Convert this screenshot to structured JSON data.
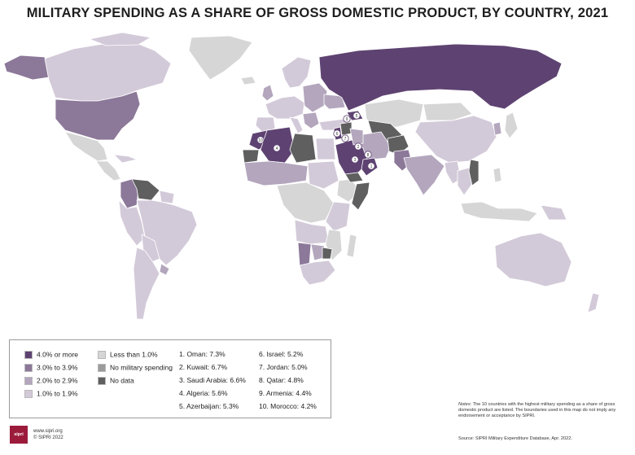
{
  "title": "MILITARY SPENDING AS A SHARE OF GROSS DOMESTIC PRODUCT, BY COUNTRY, 2021",
  "colors": {
    "c4": "#5e4372",
    "c3": "#8c7899",
    "c2": "#b3a6bd",
    "c1": "#d3cad9",
    "c0": "#d6d6d6",
    "none": "#9b9b9b",
    "nodata": "#5f5f5f",
    "ocean": "#ffffff",
    "border": "#ffffff"
  },
  "legend": {
    "categories": [
      {
        "label": "4.0% or more",
        "color": "#5e4372"
      },
      {
        "label": "3.0% to 3.9%",
        "color": "#8c7899"
      },
      {
        "label": "2.0% to 2.9%",
        "color": "#b3a6bd"
      },
      {
        "label": "1.0% to 1.9%",
        "color": "#d3cad9"
      },
      {
        "label": "Less than 1.0%",
        "color": "#d6d6d6"
      },
      {
        "label": "No military spending",
        "color": "#9b9b9b"
      },
      {
        "label": "No data",
        "color": "#5f5f5f"
      }
    ],
    "ranking": [
      "1. Oman: 7.3%",
      "2. Kuwait: 6.7%",
      "3. Saudi Arabia: 6.6%",
      "4. Algeria: 5.6%",
      "5. Azerbaijan: 5.3%",
      "6. Israel: 5.2%",
      "7. Jordan: 5.0%",
      "8. Qatar: 4.8%",
      "9. Armenia: 4.4%",
      "10. Morocco: 4.2%"
    ]
  },
  "notes": {
    "label": "Notes:",
    "text": "The 10 countries with the highest military spending as a share of gross domestic product are listed. The boundaries used in this map do not imply any endorsement or acceptance by SIPRI.",
    "source": "Source: SIPRI Military Expenditure Database, Apr. 2022."
  },
  "credit": {
    "logo": "sipri",
    "url": "www.sipri.org",
    "copyright": "© SIPRI 2022"
  },
  "map_markers": [
    "1",
    "2",
    "3",
    "4",
    "5",
    "6",
    "7",
    "8",
    "9",
    "10"
  ]
}
